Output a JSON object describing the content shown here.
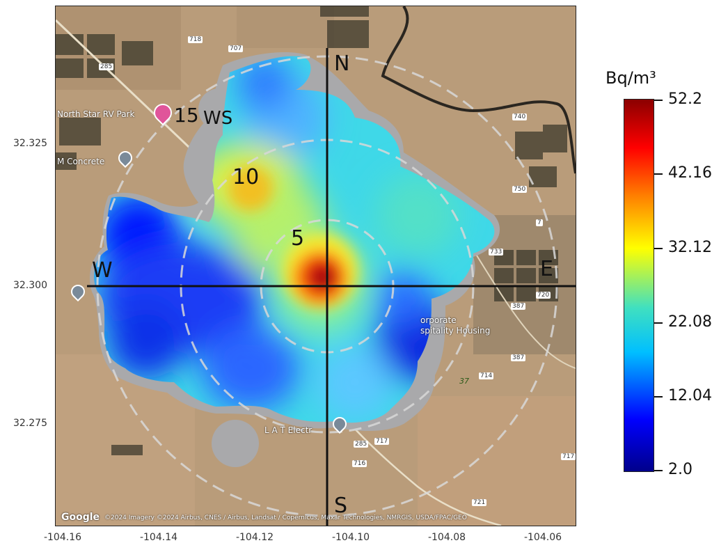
{
  "map": {
    "compass": {
      "north": "N",
      "south": "S",
      "east": "E",
      "west": "W"
    },
    "ring_labels": [
      "5",
      "10",
      "15"
    ],
    "station_label": "WS",
    "place_labels": {
      "rv_park": "North Star RV Park",
      "concrete": "M Concrete",
      "housing_1": "orporate",
      "housing_2": "spitality Housing",
      "electric": "L A T Electr"
    },
    "road_labels": [
      "718",
      "707",
      "285",
      "740",
      "750",
      "733",
      "387",
      "7",
      "714",
      "720",
      "387",
      "716",
      "717",
      "285",
      "721",
      "717",
      "37"
    ],
    "attribution_logo": "Google",
    "attribution": "©2024 Imagery ©2024 Airbus, CNES / Airbus, Landsat / Copernicus, Maxar Technologies, NMRGIS, USDA/FPAC/GEO"
  },
  "axes": {
    "y_ticks": [
      "32.325",
      "32.300",
      "32.275"
    ],
    "x_ticks": [
      "-104.16",
      "-104.14",
      "-104.12",
      "-104.10",
      "-104.08",
      "-104.06"
    ]
  },
  "colorbar": {
    "unit": "Bq/m³",
    "ticks": [
      "52.2",
      "42.16",
      "32.12",
      "22.08",
      "12.04",
      "2.0"
    ],
    "min": 2.0,
    "max": 52.2,
    "colors": [
      "#00008b",
      "#0000ff",
      "#00bfff",
      "#40e0c0",
      "#ffff00",
      "#ff8000",
      "#ff0000",
      "#8b0000"
    ]
  }
}
